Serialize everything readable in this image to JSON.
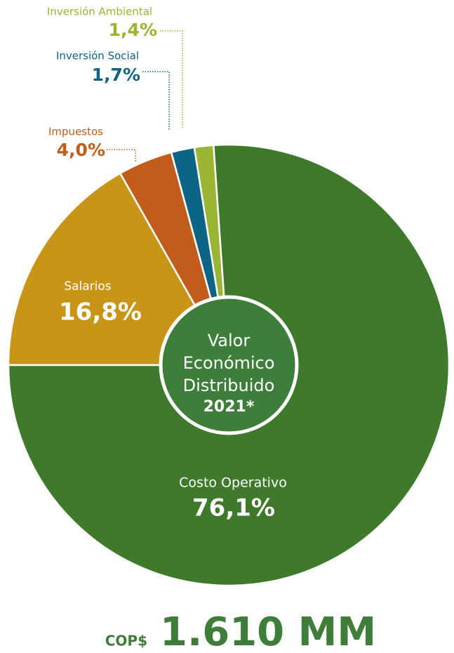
{
  "chart_data": {
    "type": "pie",
    "categories": [
      "Salarios",
      "Impuestos",
      "Inversión Social",
      "Inversión Ambiental",
      "Costo Operativo"
    ],
    "values": [
      16.8,
      4.0,
      1.7,
      1.4,
      76.1
    ],
    "value_labels": [
      "16,8%",
      "4,0%",
      "1,7%",
      "1,4%",
      "76,1%"
    ],
    "colors": [
      "#c99519",
      "#c25c1b",
      "#0c6585",
      "#9ab433",
      "#3f7a2c"
    ],
    "center_text": [
      "Valor",
      "Económico",
      "Distribuido"
    ],
    "center_year": "2021*",
    "total_prefix": "COP$",
    "total": "1.610 MM"
  }
}
